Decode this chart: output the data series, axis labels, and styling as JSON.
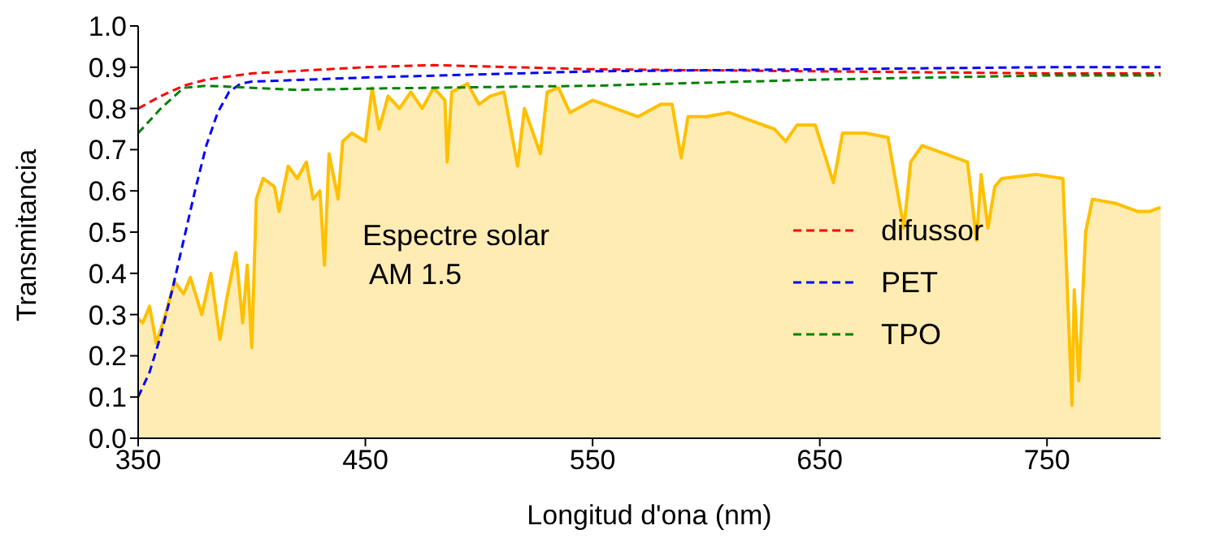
{
  "chart_data": {
    "type": "line",
    "xlabel": "Longitud d'ona (nm)",
    "ylabel": "Transmitancia",
    "xlim": [
      350,
      800
    ],
    "xticks": [
      350,
      450,
      550,
      650,
      750
    ],
    "ylim": [
      0,
      1.0
    ],
    "yticks": [
      {
        "value": 0,
        "label": "0.0"
      },
      0.1,
      0.2,
      0.3,
      0.4,
      0.5,
      0.6,
      0.7,
      0.8,
      0.9,
      {
        "value": 1,
        "label": "1.0"
      }
    ],
    "grid": false,
    "legend": "right",
    "line_style": "dashed",
    "marker": "none",
    "annotations": [
      "Espectre solar\n AM 1.5"
    ],
    "series": [
      {
        "type": "area",
        "color": "#ffc000",
        "line_style": "solid",
        "x": [
          350,
          352,
          355,
          358,
          362,
          366,
          370,
          373,
          378,
          382,
          386,
          389,
          393,
          396,
          398,
          400,
          402,
          405,
          410,
          412,
          416,
          420,
          424,
          427,
          430,
          432,
          434,
          438,
          440,
          444,
          450,
          453,
          456,
          460,
          465,
          470,
          475,
          480,
          485,
          486,
          488,
          495,
          500,
          505,
          511,
          517,
          520,
          527,
          530,
          535,
          540,
          550,
          560,
          570,
          580,
          585,
          589,
          592,
          600,
          610,
          620,
          630,
          635,
          640,
          648,
          656,
          660,
          670,
          680,
          687,
          690,
          695,
          705,
          715,
          719,
          721,
          724,
          727,
          730,
          745,
          757,
          761,
          762,
          764,
          767,
          770,
          780,
          790,
          795,
          800
        ],
        "values": [
          0.29,
          0.28,
          0.32,
          0.23,
          0.3,
          0.38,
          0.35,
          0.39,
          0.3,
          0.4,
          0.24,
          0.34,
          0.45,
          0.28,
          0.42,
          0.22,
          0.58,
          0.63,
          0.61,
          0.55,
          0.66,
          0.63,
          0.67,
          0.58,
          0.6,
          0.42,
          0.69,
          0.58,
          0.72,
          0.74,
          0.72,
          0.85,
          0.75,
          0.83,
          0.8,
          0.84,
          0.8,
          0.85,
          0.82,
          0.67,
          0.84,
          0.86,
          0.81,
          0.83,
          0.84,
          0.66,
          0.8,
          0.69,
          0.84,
          0.85,
          0.79,
          0.82,
          0.8,
          0.78,
          0.81,
          0.81,
          0.68,
          0.78,
          0.78,
          0.79,
          0.77,
          0.75,
          0.72,
          0.76,
          0.76,
          0.62,
          0.74,
          0.74,
          0.73,
          0.51,
          0.67,
          0.71,
          0.69,
          0.67,
          0.48,
          0.64,
          0.51,
          0.61,
          0.63,
          0.64,
          0.63,
          0.08,
          0.36,
          0.14,
          0.5,
          0.58,
          0.57,
          0.55,
          0.55,
          0.56
        ]
      },
      {
        "name": "difussor",
        "color": "#ff0000",
        "x": [
          350,
          360,
          370,
          380,
          400,
          450,
          480,
          550,
          650,
          750,
          800
        ],
        "values": [
          0.8,
          0.83,
          0.855,
          0.87,
          0.885,
          0.9,
          0.905,
          0.895,
          0.89,
          0.885,
          0.885
        ]
      },
      {
        "name": "PET",
        "color": "#0000ff",
        "x": [
          350,
          355,
          360,
          365,
          370,
          375,
          380,
          385,
          390,
          395,
          400,
          450,
          550,
          650,
          750,
          800
        ],
        "values": [
          0.1,
          0.16,
          0.25,
          0.36,
          0.48,
          0.6,
          0.71,
          0.79,
          0.84,
          0.86,
          0.865,
          0.875,
          0.89,
          0.895,
          0.9,
          0.9
        ]
      },
      {
        "name": "TPO",
        "color": "#008000",
        "x": [
          350,
          360,
          370,
          380,
          400,
          420,
          450,
          550,
          650,
          750,
          800
        ],
        "values": [
          0.74,
          0.8,
          0.85,
          0.855,
          0.85,
          0.845,
          0.848,
          0.855,
          0.87,
          0.88,
          0.88
        ]
      }
    ]
  }
}
